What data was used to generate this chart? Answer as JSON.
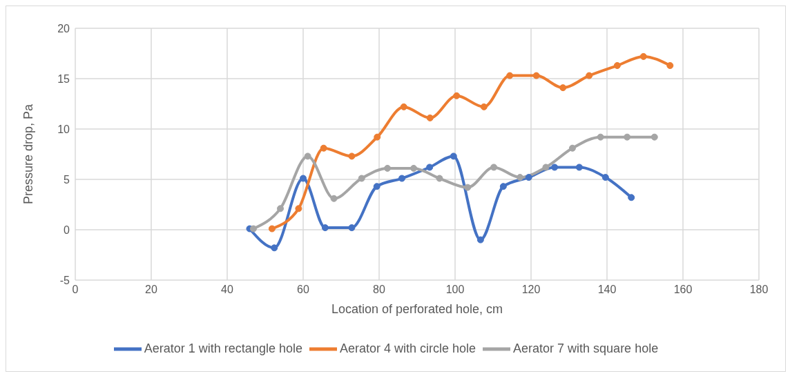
{
  "chart_data": {
    "type": "line",
    "xlabel": "Location of perforated hole, cm",
    "ylabel": "Pressure drop, Pa",
    "xlim": [
      0,
      180
    ],
    "xticks": [
      0,
      20,
      40,
      60,
      80,
      100,
      120,
      140,
      160,
      180
    ],
    "ylim": [
      -5,
      20
    ],
    "yticks": [
      -5,
      0,
      5,
      10,
      15,
      20
    ],
    "grid": true,
    "legend": "bottom",
    "marker": "circle",
    "line_style": "solid",
    "series": [
      {
        "name": "Aerator 1 with rectangle hole",
        "color": "#4472c4",
        "x": [
          45.9,
          52.4,
          60,
          65.8,
          72.8,
          79.4,
          86.0,
          93.3,
          99.6,
          106.7,
          112.7,
          119.4,
          126.2,
          132.7,
          139.6,
          146.4
        ],
        "values": [
          0.1,
          -1.8,
          5.1,
          0.2,
          0.2,
          4.3,
          5.1,
          6.2,
          7.3,
          -1.0,
          4.3,
          5.2,
          6.2,
          6.2,
          5.2,
          3.2
        ]
      },
      {
        "name": "Aerator 4 with circle hole",
        "color": "#ed7d31",
        "x": [
          51.8,
          58.8,
          65.4,
          72.8,
          79.5,
          86.5,
          93.4,
          100.4,
          107.6,
          114.4,
          121.4,
          128.4,
          135.3,
          142.7,
          149.6,
          156.6
        ],
        "values": [
          0.1,
          2.1,
          8.1,
          7.3,
          9.2,
          12.2,
          11.1,
          13.3,
          12.2,
          15.3,
          15.3,
          14.1,
          15.3,
          16.3,
          17.2,
          16.3
        ]
      },
      {
        "name": "Aerator 7 with square hole",
        "color": "#a5a5a5",
        "x": [
          46.9,
          54.0,
          61.2,
          68.1,
          75.4,
          82.2,
          89.1,
          95.9,
          103.3,
          110.2,
          117.1,
          123.9,
          130.9,
          138.3,
          145.3,
          152.5
        ],
        "values": [
          0.1,
          2.1,
          7.3,
          3.1,
          5.1,
          6.1,
          6.1,
          5.1,
          4.2,
          6.2,
          5.2,
          6.2,
          8.1,
          9.2,
          9.2,
          9.2
        ]
      }
    ]
  }
}
